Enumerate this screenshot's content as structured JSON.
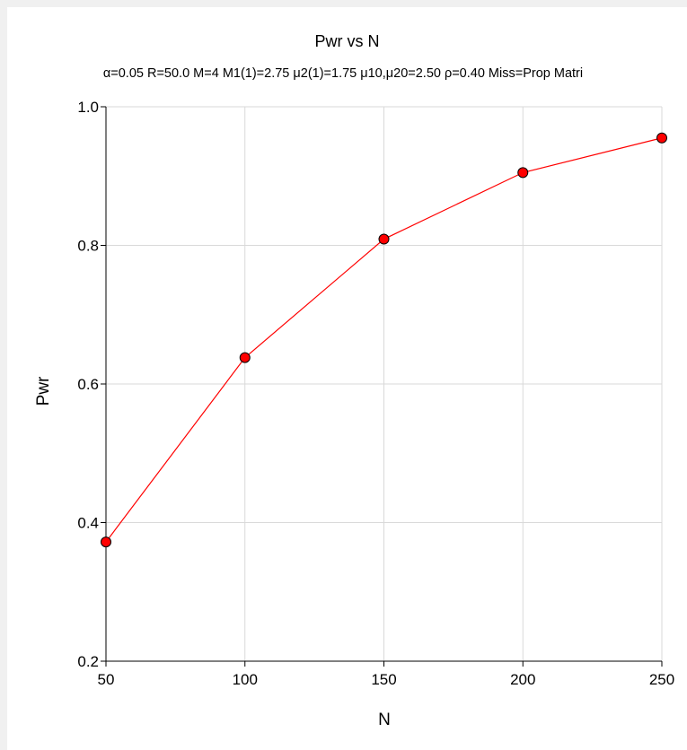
{
  "chart_data": {
    "type": "line",
    "title": "Pwr vs N",
    "subtitle": "α=0.05  R=50.0  M=4  M1(1)=2.75  μ2(1)=1.75  μ10,μ20=2.50  ρ=0.40  Miss=Prop Matri",
    "xlabel": "N",
    "ylabel": "Pwr",
    "xlim": [
      50,
      250
    ],
    "ylim": [
      0.2,
      1.0
    ],
    "xticks": [
      50,
      100,
      150,
      200,
      250
    ],
    "yticks": [
      0.2,
      0.4,
      0.6,
      0.8,
      1.0
    ],
    "xtick_labels": [
      "50",
      "100",
      "150",
      "200",
      "250"
    ],
    "ytick_labels": [
      "0.2",
      "0.4",
      "0.6",
      "0.8",
      "1.0"
    ],
    "grid": true,
    "series": [
      {
        "x": [
          50,
          100,
          150,
          200,
          250
        ],
        "y": [
          0.372,
          0.638,
          0.809,
          0.905,
          0.955
        ],
        "color": "#ff0000",
        "marker_color": "#ff0000"
      }
    ]
  }
}
